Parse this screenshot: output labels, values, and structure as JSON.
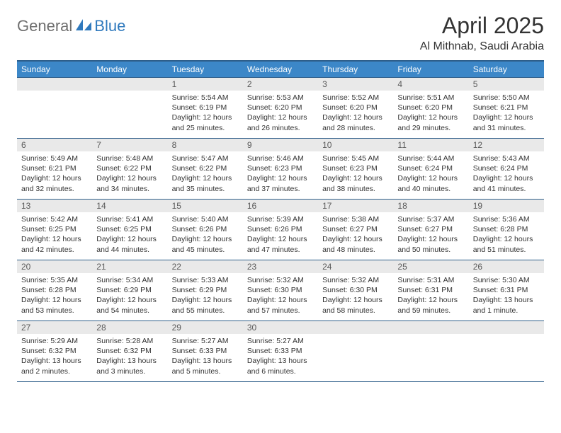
{
  "brand": {
    "part1": "General",
    "part2": "Blue"
  },
  "title": "April 2025",
  "location": "Al Mithnab, Saudi Arabia",
  "colors": {
    "header_bg": "#3c87c8",
    "header_border": "#2e5e8a",
    "daynum_bg": "#e9e9e9",
    "logo_gray": "#6f6f6f",
    "logo_blue": "#2f79bd",
    "text": "#333333",
    "white": "#ffffff"
  },
  "weekdays": [
    "Sunday",
    "Monday",
    "Tuesday",
    "Wednesday",
    "Thursday",
    "Friday",
    "Saturday"
  ],
  "weeks": [
    [
      null,
      null,
      {
        "n": "1",
        "sunrise": "5:54 AM",
        "sunset": "6:19 PM",
        "daylight": "12 hours and 25 minutes."
      },
      {
        "n": "2",
        "sunrise": "5:53 AM",
        "sunset": "6:20 PM",
        "daylight": "12 hours and 26 minutes."
      },
      {
        "n": "3",
        "sunrise": "5:52 AM",
        "sunset": "6:20 PM",
        "daylight": "12 hours and 28 minutes."
      },
      {
        "n": "4",
        "sunrise": "5:51 AM",
        "sunset": "6:20 PM",
        "daylight": "12 hours and 29 minutes."
      },
      {
        "n": "5",
        "sunrise": "5:50 AM",
        "sunset": "6:21 PM",
        "daylight": "12 hours and 31 minutes."
      }
    ],
    [
      {
        "n": "6",
        "sunrise": "5:49 AM",
        "sunset": "6:21 PM",
        "daylight": "12 hours and 32 minutes."
      },
      {
        "n": "7",
        "sunrise": "5:48 AM",
        "sunset": "6:22 PM",
        "daylight": "12 hours and 34 minutes."
      },
      {
        "n": "8",
        "sunrise": "5:47 AM",
        "sunset": "6:22 PM",
        "daylight": "12 hours and 35 minutes."
      },
      {
        "n": "9",
        "sunrise": "5:46 AM",
        "sunset": "6:23 PM",
        "daylight": "12 hours and 37 minutes."
      },
      {
        "n": "10",
        "sunrise": "5:45 AM",
        "sunset": "6:23 PM",
        "daylight": "12 hours and 38 minutes."
      },
      {
        "n": "11",
        "sunrise": "5:44 AM",
        "sunset": "6:24 PM",
        "daylight": "12 hours and 40 minutes."
      },
      {
        "n": "12",
        "sunrise": "5:43 AM",
        "sunset": "6:24 PM",
        "daylight": "12 hours and 41 minutes."
      }
    ],
    [
      {
        "n": "13",
        "sunrise": "5:42 AM",
        "sunset": "6:25 PM",
        "daylight": "12 hours and 42 minutes."
      },
      {
        "n": "14",
        "sunrise": "5:41 AM",
        "sunset": "6:25 PM",
        "daylight": "12 hours and 44 minutes."
      },
      {
        "n": "15",
        "sunrise": "5:40 AM",
        "sunset": "6:26 PM",
        "daylight": "12 hours and 45 minutes."
      },
      {
        "n": "16",
        "sunrise": "5:39 AM",
        "sunset": "6:26 PM",
        "daylight": "12 hours and 47 minutes."
      },
      {
        "n": "17",
        "sunrise": "5:38 AM",
        "sunset": "6:27 PM",
        "daylight": "12 hours and 48 minutes."
      },
      {
        "n": "18",
        "sunrise": "5:37 AM",
        "sunset": "6:27 PM",
        "daylight": "12 hours and 50 minutes."
      },
      {
        "n": "19",
        "sunrise": "5:36 AM",
        "sunset": "6:28 PM",
        "daylight": "12 hours and 51 minutes."
      }
    ],
    [
      {
        "n": "20",
        "sunrise": "5:35 AM",
        "sunset": "6:28 PM",
        "daylight": "12 hours and 53 minutes."
      },
      {
        "n": "21",
        "sunrise": "5:34 AM",
        "sunset": "6:29 PM",
        "daylight": "12 hours and 54 minutes."
      },
      {
        "n": "22",
        "sunrise": "5:33 AM",
        "sunset": "6:29 PM",
        "daylight": "12 hours and 55 minutes."
      },
      {
        "n": "23",
        "sunrise": "5:32 AM",
        "sunset": "6:30 PM",
        "daylight": "12 hours and 57 minutes."
      },
      {
        "n": "24",
        "sunrise": "5:32 AM",
        "sunset": "6:30 PM",
        "daylight": "12 hours and 58 minutes."
      },
      {
        "n": "25",
        "sunrise": "5:31 AM",
        "sunset": "6:31 PM",
        "daylight": "12 hours and 59 minutes."
      },
      {
        "n": "26",
        "sunrise": "5:30 AM",
        "sunset": "6:31 PM",
        "daylight": "13 hours and 1 minute."
      }
    ],
    [
      {
        "n": "27",
        "sunrise": "5:29 AM",
        "sunset": "6:32 PM",
        "daylight": "13 hours and 2 minutes."
      },
      {
        "n": "28",
        "sunrise": "5:28 AM",
        "sunset": "6:32 PM",
        "daylight": "13 hours and 3 minutes."
      },
      {
        "n": "29",
        "sunrise": "5:27 AM",
        "sunset": "6:33 PM",
        "daylight": "13 hours and 5 minutes."
      },
      {
        "n": "30",
        "sunrise": "5:27 AM",
        "sunset": "6:33 PM",
        "daylight": "13 hours and 6 minutes."
      },
      null,
      null,
      null
    ]
  ],
  "labels": {
    "sunrise": "Sunrise:",
    "sunset": "Sunset:",
    "daylight": "Daylight:"
  }
}
